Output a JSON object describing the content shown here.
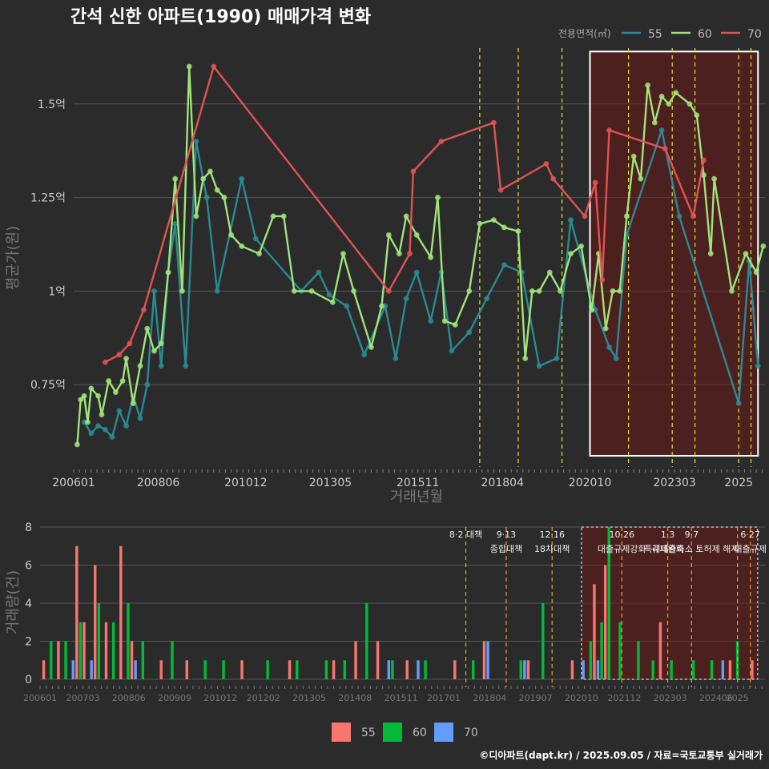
{
  "chart_data": [
    {
      "type": "line",
      "title": "간석 신한 아파트(1990) 매매가격 변화",
      "xlabel": "거래년월",
      "ylabel": "평균가(원)",
      "x_ticks": [
        "200601",
        "200806",
        "201012",
        "201305",
        "201511",
        "201804",
        "202010",
        "202303",
        "2025"
      ],
      "y_ticks": [
        {
          "value": 0.75,
          "label": "0.75억"
        },
        {
          "value": 1.0,
          "label": "1억"
        },
        {
          "value": 1.25,
          "label": "1.25억"
        },
        {
          "value": 1.5,
          "label": "1.5억"
        }
      ],
      "ylim": [
        0.53,
        1.66
      ],
      "y_unit": "억",
      "legend_title": "전용면적(㎡)",
      "legend_position": "top-right",
      "policy_lines": [
        2017.6,
        2018.7,
        2019.95,
        2021.85,
        2023.1,
        2023.75,
        2025.0,
        2025.35
      ],
      "highlight_range": [
        2020.75,
        2025.55
      ],
      "series": [
        {
          "name": "55",
          "color": "#2a8a93",
          "points": [
            [
              2006.3,
              0.65
            ],
            [
              2006.5,
              0.62
            ],
            [
              2006.7,
              0.64
            ],
            [
              2006.9,
              0.63
            ],
            [
              2007.1,
              0.61
            ],
            [
              2007.3,
              0.68
            ],
            [
              2007.5,
              0.64
            ],
            [
              2007.7,
              0.72
            ],
            [
              2007.9,
              0.66
            ],
            [
              2008.1,
              0.75
            ],
            [
              2008.3,
              1.0
            ],
            [
              2008.5,
              0.8
            ],
            [
              2008.7,
              1.05
            ],
            [
              2008.9,
              1.18
            ],
            [
              2009.2,
              0.8
            ],
            [
              2009.5,
              1.4
            ],
            [
              2009.8,
              1.25
            ],
            [
              2010.1,
              1.0
            ],
            [
              2010.8,
              1.3
            ],
            [
              2011.2,
              1.14
            ],
            [
              2012.5,
              1.0
            ],
            [
              2013.0,
              1.05
            ],
            [
              2013.3,
              0.99
            ],
            [
              2013.8,
              0.96
            ],
            [
              2014.3,
              0.83
            ],
            [
              2014.9,
              0.96
            ],
            [
              2015.2,
              0.82
            ],
            [
              2015.5,
              0.98
            ],
            [
              2015.8,
              1.05
            ],
            [
              2016.2,
              0.92
            ],
            [
              2016.5,
              1.05
            ],
            [
              2016.8,
              0.84
            ],
            [
              2017.3,
              0.89
            ],
            [
              2017.8,
              0.98
            ],
            [
              2018.3,
              1.07
            ],
            [
              2018.8,
              1.05
            ],
            [
              2019.3,
              0.8
            ],
            [
              2019.8,
              0.82
            ],
            [
              2020.2,
              1.19
            ],
            [
              2020.9,
              0.95
            ],
            [
              2021.3,
              0.85
            ],
            [
              2021.5,
              0.82
            ],
            [
              2021.8,
              1.15
            ],
            [
              2022.8,
              1.43
            ],
            [
              2023.3,
              1.2
            ],
            [
              2025.0,
              0.7
            ],
            [
              2025.3,
              1.08
            ],
            [
              2025.55,
              0.8
            ]
          ]
        },
        {
          "name": "60",
          "color": "#9fe37a",
          "points": [
            [
              2006.1,
              0.59
            ],
            [
              2006.2,
              0.71
            ],
            [
              2006.3,
              0.72
            ],
            [
              2006.4,
              0.65
            ],
            [
              2006.5,
              0.74
            ],
            [
              2006.7,
              0.72
            ],
            [
              2006.8,
              0.67
            ],
            [
              2007.0,
              0.76
            ],
            [
              2007.2,
              0.73
            ],
            [
              2007.4,
              0.76
            ],
            [
              2007.5,
              0.82
            ],
            [
              2007.7,
              0.7
            ],
            [
              2007.9,
              0.8
            ],
            [
              2008.1,
              0.9
            ],
            [
              2008.3,
              0.84
            ],
            [
              2008.5,
              0.86
            ],
            [
              2008.7,
              1.05
            ],
            [
              2008.9,
              1.3
            ],
            [
              2009.1,
              1.0
            ],
            [
              2009.3,
              1.6
            ],
            [
              2009.5,
              1.2
            ],
            [
              2009.7,
              1.3
            ],
            [
              2009.9,
              1.32
            ],
            [
              2010.1,
              1.27
            ],
            [
              2010.3,
              1.25
            ],
            [
              2010.5,
              1.15
            ],
            [
              2010.8,
              1.12
            ],
            [
              2011.3,
              1.1
            ],
            [
              2011.7,
              1.2
            ],
            [
              2012.0,
              1.2
            ],
            [
              2012.3,
              1.0
            ],
            [
              2012.8,
              1.0
            ],
            [
              2013.4,
              0.97
            ],
            [
              2013.7,
              1.1
            ],
            [
              2014.0,
              1.0
            ],
            [
              2014.5,
              0.85
            ],
            [
              2014.8,
              0.96
            ],
            [
              2015.0,
              1.15
            ],
            [
              2015.3,
              1.1
            ],
            [
              2015.5,
              1.2
            ],
            [
              2015.8,
              1.15
            ],
            [
              2016.2,
              1.09
            ],
            [
              2016.4,
              1.25
            ],
            [
              2016.6,
              0.92
            ],
            [
              2016.9,
              0.91
            ],
            [
              2017.3,
              1.0
            ],
            [
              2017.6,
              1.18
            ],
            [
              2018.0,
              1.19
            ],
            [
              2018.3,
              1.17
            ],
            [
              2018.7,
              1.16
            ],
            [
              2018.9,
              0.82
            ],
            [
              2019.1,
              1.0
            ],
            [
              2019.3,
              1.0
            ],
            [
              2019.6,
              1.05
            ],
            [
              2019.9,
              1.0
            ],
            [
              2020.2,
              1.1
            ],
            [
              2020.5,
              1.12
            ],
            [
              2020.8,
              0.95
            ],
            [
              2021.0,
              1.1
            ],
            [
              2021.2,
              0.9
            ],
            [
              2021.4,
              1.0
            ],
            [
              2021.6,
              1.0
            ],
            [
              2021.8,
              1.2
            ],
            [
              2022.0,
              1.36
            ],
            [
              2022.2,
              1.3
            ],
            [
              2022.4,
              1.55
            ],
            [
              2022.6,
              1.45
            ],
            [
              2022.8,
              1.52
            ],
            [
              2023.0,
              1.5
            ],
            [
              2023.2,
              1.53
            ],
            [
              2023.6,
              1.5
            ],
            [
              2023.8,
              1.47
            ],
            [
              2024.0,
              1.31
            ],
            [
              2024.2,
              1.1
            ],
            [
              2024.3,
              1.3
            ],
            [
              2024.8,
              1.0
            ],
            [
              2025.2,
              1.1
            ],
            [
              2025.5,
              1.05
            ],
            [
              2025.7,
              1.12
            ]
          ]
        },
        {
          "name": "70",
          "color": "#e05353",
          "points": [
            [
              2006.9,
              0.81
            ],
            [
              2007.3,
              0.83
            ],
            [
              2007.6,
              0.86
            ],
            [
              2008.0,
              0.95
            ],
            [
              2010.0,
              1.6
            ],
            [
              2015.0,
              1.0
            ],
            [
              2015.6,
              1.1
            ],
            [
              2015.7,
              1.32
            ],
            [
              2016.5,
              1.4
            ],
            [
              2018.0,
              1.45
            ],
            [
              2018.2,
              1.27
            ],
            [
              2019.5,
              1.34
            ],
            [
              2019.7,
              1.3
            ],
            [
              2020.6,
              1.2
            ],
            [
              2020.9,
              1.29
            ],
            [
              2021.1,
              1.03
            ],
            [
              2021.3,
              1.43
            ],
            [
              2022.9,
              1.38
            ],
            [
              2023.7,
              1.2
            ],
            [
              2024.0,
              1.35
            ]
          ]
        }
      ]
    },
    {
      "type": "bar",
      "xlabel": "",
      "ylabel": "거래량(건)",
      "x_ticks": [
        "200601",
        "200703",
        "200806",
        "200909",
        "201012",
        "201202",
        "201305",
        "201408",
        "201511",
        "201701",
        "201804",
        "201907",
        "202010",
        "202112",
        "202303",
        "202406",
        "2025"
      ],
      "y_ticks": [
        0,
        2,
        4,
        6,
        8
      ],
      "ylim": [
        0,
        8
      ],
      "legend_position": "bottom",
      "highlight_range": [
        2020.75,
        2025.55
      ],
      "policy_annotations": [
        {
          "date": "8·2 대책",
          "label": ""
        },
        {
          "date": "9·13",
          "label": "종합대책"
        },
        {
          "date": "12·16",
          "label": "18차대책"
        },
        {
          "date": "10·26",
          "label": "대출규제강화"
        },
        {
          "date": "1·3",
          "label": "규제완화"
        },
        {
          "date": "9·7",
          "label": "특례대출축소 토허제 해제"
        },
        {
          "date": "6·27",
          "label": "대출규제"
        }
      ],
      "series": [
        {
          "name": "55",
          "color": "#f8766d",
          "values": [
            [
              2006.1,
              1
            ],
            [
              2006.5,
              2
            ],
            [
              2007.0,
              7
            ],
            [
              2007.2,
              3
            ],
            [
              2007.5,
              6
            ],
            [
              2007.8,
              3
            ],
            [
              2008.2,
              7
            ],
            [
              2008.5,
              2
            ],
            [
              2009.3,
              1
            ],
            [
              2010.0,
              1
            ],
            [
              2011.5,
              1
            ],
            [
              2012.8,
              1
            ],
            [
              2014.0,
              1
            ],
            [
              2014.6,
              2
            ],
            [
              2015.2,
              2
            ],
            [
              2016.0,
              1
            ],
            [
              2017.3,
              1
            ],
            [
              2018.1,
              2
            ],
            [
              2019.3,
              1
            ],
            [
              2020.5,
              1
            ],
            [
              2021.1,
              5
            ],
            [
              2021.4,
              6
            ],
            [
              2022.9,
              3
            ],
            [
              2024.8,
              1
            ],
            [
              2025.4,
              1
            ]
          ]
        },
        {
          "name": "60",
          "color": "#00ba38",
          "values": [
            [
              2006.3,
              2
            ],
            [
              2006.7,
              2
            ],
            [
              2007.1,
              3
            ],
            [
              2007.6,
              4
            ],
            [
              2008.0,
              3
            ],
            [
              2008.4,
              4
            ],
            [
              2008.8,
              2
            ],
            [
              2009.6,
              2
            ],
            [
              2010.5,
              1
            ],
            [
              2011.0,
              1
            ],
            [
              2012.2,
              1
            ],
            [
              2013.0,
              1
            ],
            [
              2013.8,
              1
            ],
            [
              2014.3,
              1
            ],
            [
              2014.9,
              4
            ],
            [
              2015.6,
              1
            ],
            [
              2016.5,
              1
            ],
            [
              2017.8,
              1
            ],
            [
              2019.1,
              1
            ],
            [
              2019.7,
              4
            ],
            [
              2021.0,
              2
            ],
            [
              2021.3,
              3
            ],
            [
              2021.5,
              8
            ],
            [
              2021.8,
              3
            ],
            [
              2022.3,
              2
            ],
            [
              2022.7,
              1
            ],
            [
              2023.2,
              1
            ],
            [
              2023.8,
              1
            ],
            [
              2024.3,
              1
            ],
            [
              2025.0,
              2
            ]
          ]
        },
        {
          "name": "70",
          "color": "#619cff",
          "values": [
            [
              2006.9,
              1
            ],
            [
              2007.4,
              1
            ],
            [
              2008.6,
              1
            ],
            [
              2015.5,
              1
            ],
            [
              2016.3,
              1
            ],
            [
              2018.2,
              2
            ],
            [
              2019.2,
              1
            ],
            [
              2020.8,
              1
            ],
            [
              2021.2,
              1
            ],
            [
              2024.6,
              1
            ]
          ]
        }
      ]
    }
  ],
  "source": "©디아파트(dapt.kr) / 2025.09.05 / 자료=국토교통부 실거래가"
}
